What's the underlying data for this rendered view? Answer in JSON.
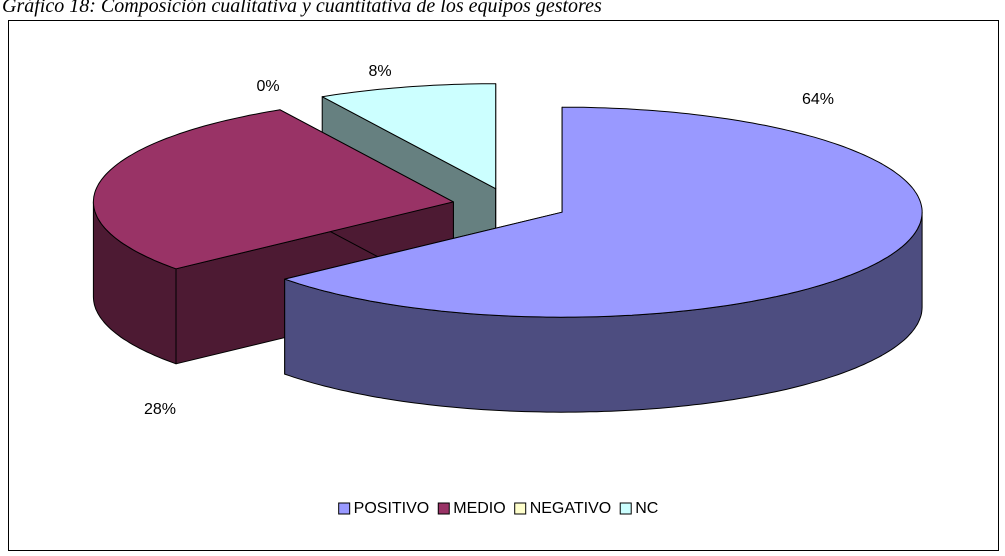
{
  "chart_data": {
    "type": "pie",
    "title": "Gráfico 18: Composición cualitativa y cuantitativa de los equipos gestores",
    "categories": [
      "POSITIVO",
      "MEDIO",
      "NEGATIVO",
      "NC"
    ],
    "values": [
      64,
      28,
      0,
      8
    ],
    "value_labels": [
      "64%",
      "28%",
      "0%",
      "8%"
    ],
    "colors": [
      "#9999ff",
      "#993366",
      "#ffffcc",
      "#ccffff"
    ],
    "legend": "bottom"
  }
}
